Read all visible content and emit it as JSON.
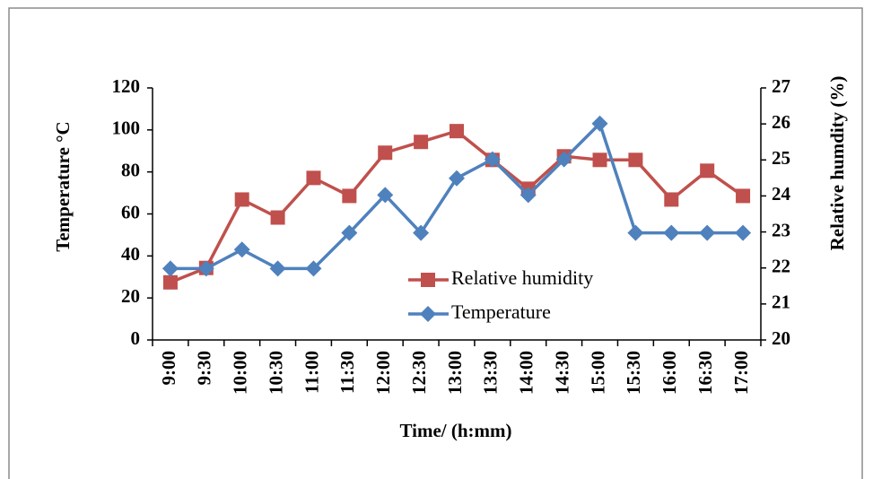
{
  "chart_data": {
    "type": "line",
    "x_label": "Time/ (h:mm)",
    "y_label": "Temperature °C",
    "y2_label": "Relative humdity (%)",
    "categories": [
      "9:00",
      "9:30",
      "10:00",
      "10:30",
      "11:00",
      "11:30",
      "12:00",
      "12:30",
      "13:00",
      "13:30",
      "14:00",
      "14:30",
      "15:00",
      "15:30",
      "16:00",
      "16:30",
      "17:00"
    ],
    "series": [
      {
        "name": "Relative humidity",
        "color": "#c0504d",
        "marker": "square",
        "axis": "y2",
        "values": [
          21.6,
          22.0,
          23.9,
          23.4,
          24.5,
          24.0,
          25.2,
          25.5,
          25.8,
          25.0,
          24.2,
          25.1,
          25.0,
          25.0,
          23.9,
          24.7,
          24.0
        ]
      },
      {
        "name": "Temperature",
        "color": "#4f81bd",
        "marker": "diamond",
        "values": [
          34,
          34,
          43,
          34,
          34,
          51,
          69,
          51,
          77,
          86,
          69,
          86,
          103,
          51,
          51,
          51,
          51
        ]
      }
    ],
    "ylim": [
      0,
      120
    ],
    "yticks": [
      0,
      20,
      40,
      60,
      80,
      100,
      120
    ],
    "y2lim": [
      20,
      27
    ],
    "y2ticks": [
      20,
      21,
      22,
      23,
      24,
      25,
      26,
      27
    ],
    "grid": false
  }
}
